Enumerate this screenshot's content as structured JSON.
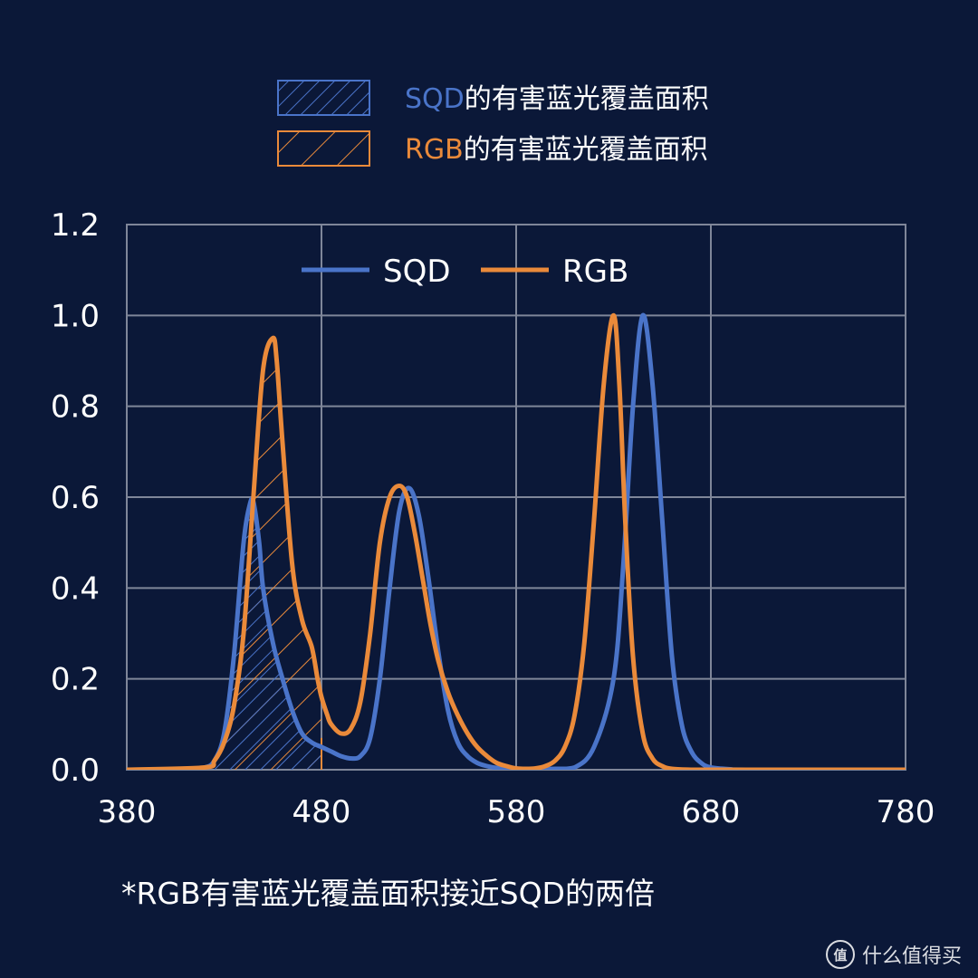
{
  "colors": {
    "background": "#0b1838",
    "sqd": "#4a74c9",
    "rgb": "#ea8a3a",
    "grid": "#7f8699"
  },
  "top_legend": [
    {
      "prefix": "SQD",
      "suffix": "的有害蓝光覆盖面积",
      "color": "#4a74c9"
    },
    {
      "prefix": "RGB",
      "suffix": "的有害蓝光覆盖面积",
      "color": "#ea8a3a"
    }
  ],
  "footnote": "*RGB有害蓝光覆盖面积接近SQD的两倍",
  "watermark": {
    "icon": "值",
    "text": "什么值得买"
  },
  "chart_data": {
    "type": "line",
    "xlim": [
      380,
      780
    ],
    "ylim": [
      0,
      1.2
    ],
    "x_ticks": [
      380,
      480,
      580,
      680,
      780
    ],
    "y_ticks": [
      0.0,
      0.2,
      0.4,
      0.6,
      0.8,
      1.0,
      1.2
    ],
    "x_tick_labels": [
      "380",
      "480",
      "580",
      "680",
      "780"
    ],
    "y_tick_labels": [
      "0.0",
      "0.2",
      "0.4",
      "0.6",
      "0.8",
      "1.0",
      "1.2"
    ],
    "grid": true,
    "legend_placement": "top-center",
    "shaded_region": [
      420,
      480
    ],
    "series": [
      {
        "name": "SQD",
        "color": "#4a74c9",
        "x": [
          380,
          410,
          420,
          425,
          430,
          435,
          440,
          443,
          445,
          448,
          450,
          455,
          460,
          465,
          470,
          475,
          480,
          485,
          490,
          495,
          500,
          505,
          510,
          515,
          520,
          525,
          530,
          535,
          540,
          545,
          550,
          555,
          560,
          565,
          570,
          575,
          580,
          590,
          600,
          610,
          620,
          630,
          635,
          640,
          645,
          650,
          655,
          660,
          665,
          670,
          675,
          680,
          690,
          700,
          780
        ],
        "y": [
          0,
          0,
          0.005,
          0.02,
          0.08,
          0.25,
          0.5,
          0.58,
          0.59,
          0.5,
          0.4,
          0.28,
          0.2,
          0.13,
          0.08,
          0.06,
          0.05,
          0.04,
          0.03,
          0.025,
          0.03,
          0.07,
          0.2,
          0.4,
          0.57,
          0.62,
          0.56,
          0.42,
          0.26,
          0.13,
          0.06,
          0.03,
          0.015,
          0.008,
          0.004,
          0.002,
          0.001,
          0.001,
          0.002,
          0.005,
          0.05,
          0.2,
          0.45,
          0.8,
          1.0,
          0.85,
          0.55,
          0.25,
          0.1,
          0.04,
          0.015,
          0.005,
          0.001,
          0,
          0
        ]
      },
      {
        "name": "RGB",
        "color": "#ea8a3a",
        "x": [
          380,
          420,
          425,
          430,
          435,
          440,
          445,
          450,
          455,
          457,
          460,
          465,
          470,
          475,
          478,
          480,
          483,
          485,
          490,
          495,
          500,
          505,
          510,
          515,
          520,
          524,
          528,
          532,
          536,
          540,
          545,
          550,
          555,
          560,
          565,
          570,
          575,
          580,
          585,
          590,
          595,
          600,
          605,
          610,
          615,
          620,
          625,
          630,
          633,
          636,
          640,
          645,
          650,
          655,
          660,
          670,
          680,
          690,
          700,
          780
        ],
        "y": [
          0,
          0.005,
          0.02,
          0.06,
          0.14,
          0.3,
          0.6,
          0.88,
          0.95,
          0.9,
          0.72,
          0.45,
          0.33,
          0.27,
          0.2,
          0.16,
          0.12,
          0.1,
          0.08,
          0.09,
          0.15,
          0.3,
          0.5,
          0.6,
          0.625,
          0.6,
          0.52,
          0.42,
          0.32,
          0.24,
          0.17,
          0.12,
          0.08,
          0.05,
          0.03,
          0.015,
          0.008,
          0.003,
          0.002,
          0.003,
          0.008,
          0.02,
          0.05,
          0.12,
          0.28,
          0.55,
          0.85,
          1.0,
          0.85,
          0.55,
          0.25,
          0.08,
          0.025,
          0.008,
          0.002,
          0,
          0,
          0,
          0,
          0
        ]
      }
    ]
  }
}
